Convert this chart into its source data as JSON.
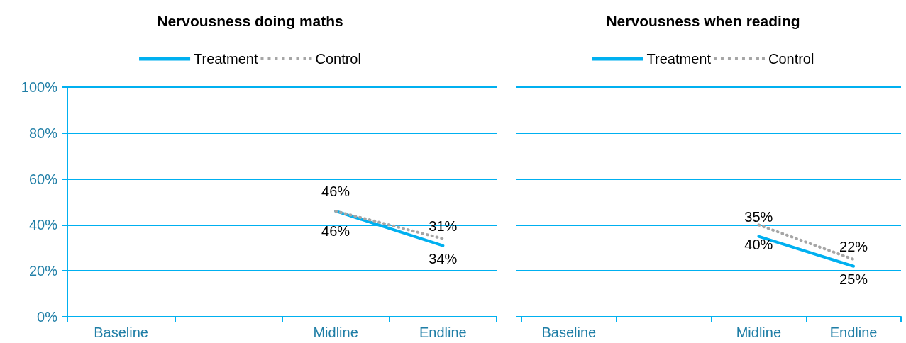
{
  "chart_data": [
    {
      "type": "line",
      "title": "Nervousness doing maths",
      "categories": [
        "Baseline",
        null,
        "Midline",
        "Endline"
      ],
      "ylim": [
        0,
        100
      ],
      "yticks": [
        {
          "value": 0,
          "label": "0%"
        },
        {
          "value": 20,
          "label": "20%"
        },
        {
          "value": 40,
          "label": "40%"
        },
        {
          "value": 60,
          "label": "60%"
        },
        {
          "value": 80,
          "label": "80%"
        },
        {
          "value": 100,
          "label": "100%"
        }
      ],
      "grid": "y",
      "legend": "top",
      "marker": "none",
      "series": [
        {
          "name": "Treatment",
          "color": "#00b0f0",
          "line_style": "solid",
          "values": [
            null,
            null,
            46,
            31
          ],
          "value_labels": [
            null,
            null,
            "46%",
            "31%"
          ]
        },
        {
          "name": "Control",
          "color": "#a6a6a6",
          "line_style": "dotted",
          "values": [
            null,
            null,
            46,
            34
          ],
          "value_labels": [
            null,
            null,
            "46%",
            "34%"
          ]
        }
      ]
    },
    {
      "type": "line",
      "title": "Nervousness when reading",
      "categories": [
        "Baseline",
        null,
        "Midline",
        "Endline"
      ],
      "ylim": [
        0,
        100
      ],
      "yticks": [
        {
          "value": 0,
          "label": null
        },
        {
          "value": 20,
          "label": null
        },
        {
          "value": 40,
          "label": null
        },
        {
          "value": 60,
          "label": null
        },
        {
          "value": 80,
          "label": null
        },
        {
          "value": 100,
          "label": null
        }
      ],
      "grid": "y",
      "legend": "top",
      "marker": "none",
      "tick_labels": "x",
      "series": [
        {
          "name": "Treatment",
          "color": "#00b0f0",
          "line_style": "solid",
          "values": [
            null,
            null,
            35,
            22
          ],
          "value_labels": [
            null,
            null,
            "35%",
            "22%"
          ]
        },
        {
          "name": "Control",
          "color": "#a6a6a6",
          "line_style": "dotted",
          "values": [
            null,
            null,
            40,
            25
          ],
          "value_labels": [
            null,
            null,
            "40%",
            "25%"
          ]
        }
      ]
    }
  ]
}
